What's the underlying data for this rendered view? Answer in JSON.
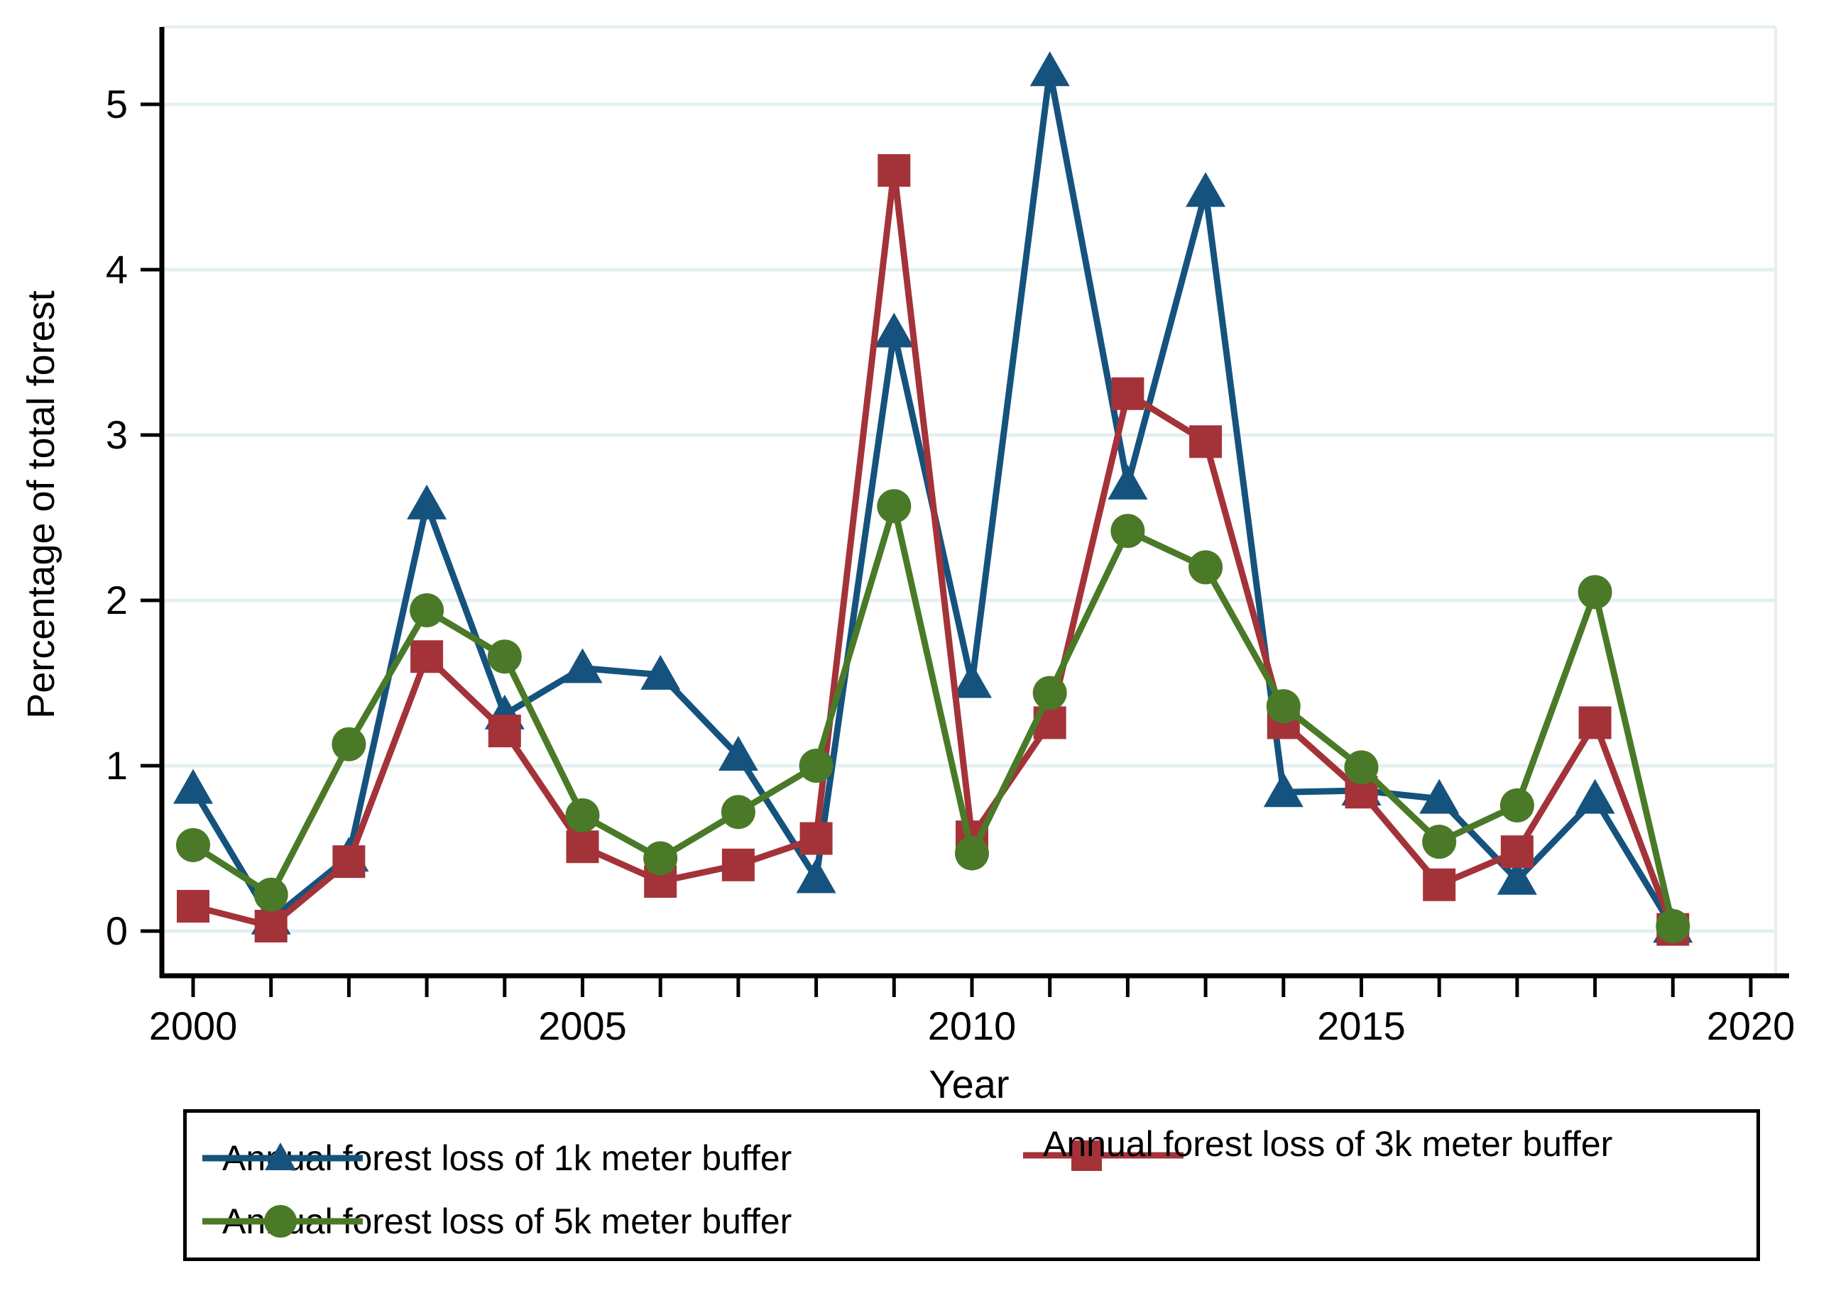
{
  "chart_data": {
    "type": "line",
    "title": "",
    "xlabel": "Year",
    "ylabel": "Percentage of total forest",
    "grid": true,
    "legend_position": "bottom",
    "xlim": [
      1999.6,
      2020.5
    ],
    "ylim": [
      -0.27,
      5.47
    ],
    "x_tick_labels": [
      2000,
      2005,
      2010,
      2015,
      2020
    ],
    "x_minor_ticks_every_year": true,
    "y_ticks": [
      0,
      1,
      2,
      3,
      4,
      5
    ],
    "x": [
      2000,
      2001,
      2002,
      2003,
      2004,
      2005,
      2006,
      2007,
      2008,
      2009,
      2010,
      2011,
      2012,
      2013,
      2014,
      2015,
      2016,
      2017,
      2018,
      2019
    ],
    "series": [
      {
        "key": "1k",
        "name": "Annual forest loss of 1k meter buffer",
        "marker": "triangle",
        "color": "#15537e",
        "values": [
          0.86,
          0.07,
          0.45,
          2.58,
          1.31,
          1.59,
          1.55,
          1.06,
          0.32,
          3.62,
          1.5,
          5.2,
          2.7,
          4.47,
          0.84,
          0.85,
          0.8,
          0.31,
          0.8,
          0.02
        ]
      },
      {
        "key": "3k",
        "name": "Annual forest loss of 3k meter buffer",
        "marker": "square",
        "color": "#a43339",
        "values": [
          0.15,
          0.03,
          0.42,
          1.66,
          1.21,
          0.51,
          0.3,
          0.4,
          0.56,
          4.6,
          0.57,
          1.26,
          3.25,
          2.96,
          1.26,
          0.84,
          0.28,
          0.48,
          1.26,
          0.01
        ]
      },
      {
        "key": "5k",
        "name": "Annual forest loss of 5k meter buffer",
        "marker": "circle",
        "color": "#4a7a28",
        "values": [
          0.52,
          0.22,
          1.13,
          1.94,
          1.66,
          0.7,
          0.44,
          0.72,
          1.0,
          2.57,
          0.47,
          1.44,
          2.42,
          2.2,
          1.36,
          0.99,
          0.54,
          0.76,
          2.05,
          0.03
        ]
      }
    ],
    "colors": {
      "grid": "#e4f0ef",
      "axis": "#000000",
      "background": "#ffffff"
    }
  }
}
